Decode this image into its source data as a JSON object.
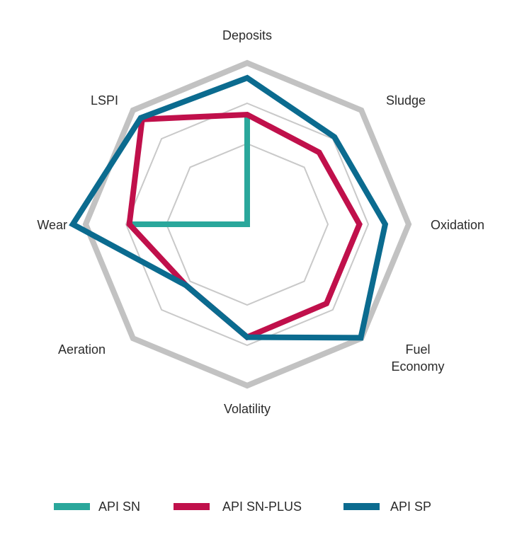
{
  "chart_data": {
    "type": "radar",
    "axes": [
      "Deposits",
      "Sludge",
      "Oxidation",
      "Fuel Economy",
      "Volatility",
      "Aeration",
      "Wear",
      "LSPI"
    ],
    "axis_label_lines": [
      [
        "Deposits"
      ],
      [
        "Sludge"
      ],
      [
        "Oxidation"
      ],
      [
        "Fuel",
        "Economy"
      ],
      [
        "Volatility"
      ],
      [
        "Aeration"
      ],
      [
        "Wear"
      ],
      [
        "LSPI"
      ]
    ],
    "range": [
      0,
      4
    ],
    "grid_levels": [
      2,
      3,
      4
    ],
    "grid": true,
    "legend_position": "bottom",
    "series": [
      {
        "name": "API SN",
        "color": "#2aa79b",
        "values": [
          2.72,
          0,
          0,
          0,
          0,
          0,
          2.92,
          0
        ]
      },
      {
        "name": "API SN-PLUS",
        "color": "#c0104b",
        "values": [
          2.72,
          2.52,
          2.78,
          2.78,
          2.8,
          2.14,
          2.92,
          3.68
        ]
      },
      {
        "name": "API SP",
        "color": "#0b6b8f",
        "values": [
          3.63,
          3.06,
          3.42,
          3.98,
          2.8,
          2.14,
          4.32,
          3.73
        ]
      }
    ],
    "title": "",
    "xlabel": "",
    "ylabel": ""
  },
  "colors": {
    "outer_ring": "#c2c2c2",
    "grid": "#c9c9c9",
    "text": "#2b2b2b"
  }
}
